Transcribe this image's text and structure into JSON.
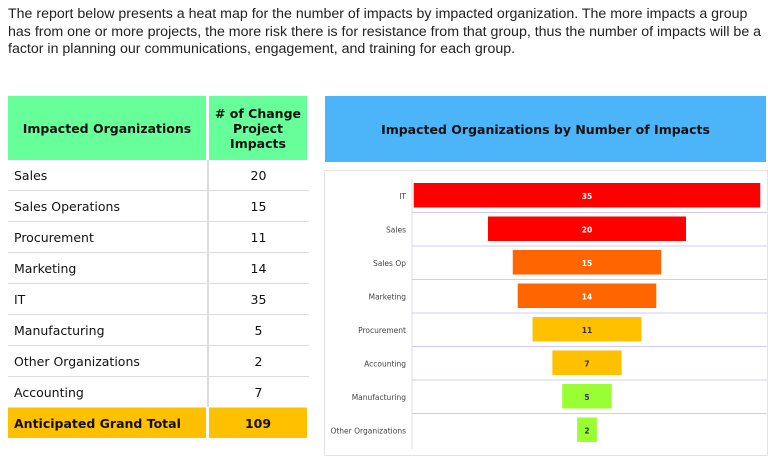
{
  "intro": "The report below presents a heat map for the number of impacts by impacted organization. The more impacts a group has from one or more projects, the more risk there is for resistance from that group, thus the number of impacts will be a factor in planning our communications, engagement, and training for each group.",
  "table": {
    "headers": [
      "Impacted Organizations",
      "# of Change Project Impacts"
    ],
    "rows": [
      [
        "Sales",
        "20"
      ],
      [
        "Sales Operations",
        "15"
      ],
      [
        "Procurement",
        "11"
      ],
      [
        "Marketing",
        "14"
      ],
      [
        "IT",
        "35"
      ],
      [
        "Manufacturing",
        "5"
      ],
      [
        "Other Organizations",
        "2"
      ],
      [
        "Accounting",
        "7"
      ]
    ],
    "total": [
      "Anticipated Grand Total",
      "109"
    ]
  },
  "chart_data": {
    "type": "bar",
    "title": "Impacted Organizations by Number of Impacts",
    "categories": [
      "IT",
      "Sales",
      "Sales Op",
      "Marketing",
      "Procurement",
      "Accounting",
      "Manufacturing",
      "Other Organizations"
    ],
    "values": [
      35,
      20,
      15,
      14,
      11,
      7,
      5,
      2
    ],
    "colors": [
      "#FF0000",
      "#FF0000",
      "#FF6600",
      "#FF6600",
      "#FFC000",
      "#FFC000",
      "#99FF33",
      "#99FF33"
    ],
    "label_colors": [
      "#ffffff",
      "#ffffff",
      "#ffffff",
      "#ffffff",
      "#333333",
      "#333333",
      "#333333",
      "#333333"
    ],
    "style": "funnel (centered bars)",
    "grid": true
  }
}
